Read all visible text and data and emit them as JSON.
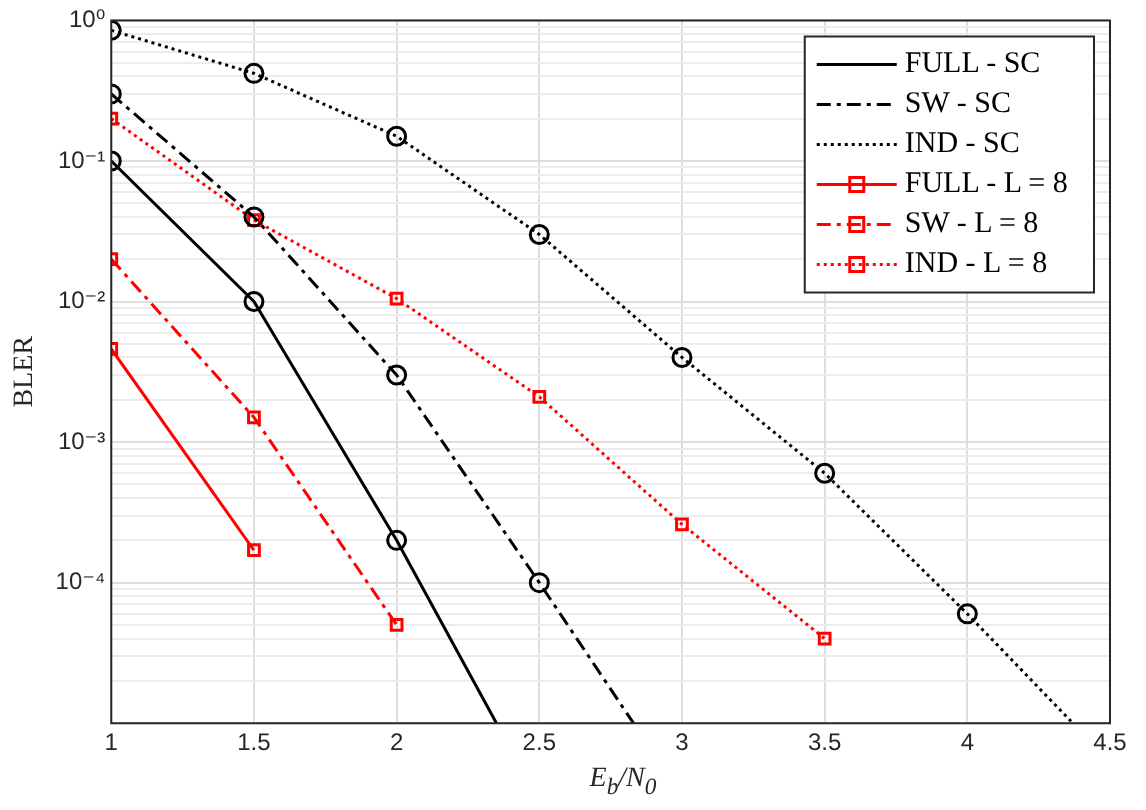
{
  "chart_data": {
    "type": "line",
    "xlabel": "E$_{b}$/N$_{0}$",
    "ylabel": "BLER",
    "xlim": [
      1,
      4.5
    ],
    "xticks": [
      1,
      1.5,
      2,
      2.5,
      3,
      3.5,
      4,
      4.5
    ],
    "ylim": [
      1e-05,
      1
    ],
    "log": "y",
    "yticks": [
      {
        "value": 1e-05,
        "label": null
      },
      {
        "value": 2e-05,
        "label": null
      },
      {
        "value": 3e-05,
        "label": null
      },
      {
        "value": 4e-05,
        "label": null
      },
      {
        "value": 5e-05,
        "label": null
      },
      {
        "value": 6e-05,
        "label": null
      },
      {
        "value": 7e-05,
        "label": null
      },
      {
        "value": 8e-05,
        "label": null
      },
      {
        "value": 9e-05,
        "label": null
      },
      {
        "value": 0.0001,
        "label": "10⁻⁴"
      },
      {
        "value": 0.0002,
        "label": null
      },
      {
        "value": 0.0003,
        "label": null
      },
      {
        "value": 0.0004,
        "label": null
      },
      {
        "value": 0.0005,
        "label": null
      },
      {
        "value": 0.0006,
        "label": null
      },
      {
        "value": 0.0007,
        "label": null
      },
      {
        "value": 0.0008,
        "label": null
      },
      {
        "value": 0.0009,
        "label": null
      },
      {
        "value": 0.001,
        "label": "10⁻³"
      },
      {
        "value": 0.002,
        "label": null
      },
      {
        "value": 0.003,
        "label": null
      },
      {
        "value": 0.004,
        "label": null
      },
      {
        "value": 0.005,
        "label": null
      },
      {
        "value": 0.006,
        "label": null
      },
      {
        "value": 0.007,
        "label": null
      },
      {
        "value": 0.008,
        "label": null
      },
      {
        "value": 0.009,
        "label": null
      },
      {
        "value": 0.01,
        "label": "10⁻²"
      },
      {
        "value": 0.02,
        "label": null
      },
      {
        "value": 0.03,
        "label": null
      },
      {
        "value": 0.04,
        "label": null
      },
      {
        "value": 0.05,
        "label": null
      },
      {
        "value": 0.06,
        "label": null
      },
      {
        "value": 0.07,
        "label": null
      },
      {
        "value": 0.08,
        "label": null
      },
      {
        "value": 0.09,
        "label": null
      },
      {
        "value": 0.1,
        "label": "10⁻¹"
      },
      {
        "value": 0.2,
        "label": null
      },
      {
        "value": 0.3,
        "label": null
      },
      {
        "value": 0.4,
        "label": null
      },
      {
        "value": 0.5,
        "label": null
      },
      {
        "value": 0.6,
        "label": null
      },
      {
        "value": 0.7,
        "label": null
      },
      {
        "value": 0.8,
        "label": null
      },
      {
        "value": 0.9,
        "label": null
      },
      {
        "value": 1,
        "label": "10⁰"
      }
    ],
    "grid": true,
    "legend": "top right",
    "series": [
      {
        "name": "FULL - SC",
        "color": "#000000",
        "line_style": "solid",
        "marker": "circle",
        "x": [
          1,
          1.5,
          2,
          2.35
        ],
        "values": [
          0.1,
          0.01,
          0.0002,
          1e-05
        ]
      },
      {
        "name": "SW - SC",
        "color": "#000000",
        "line_style": "dashed",
        "marker": "circle",
        "x": [
          1,
          1.5,
          2,
          2.5,
          2.83
        ],
        "values": [
          0.3,
          0.04,
          0.003,
          0.0001,
          1e-05
        ]
      },
      {
        "name": "IND - SC",
        "color": "#000000",
        "line_style": "dotted",
        "marker": "circle",
        "x": [
          1,
          1.5,
          2,
          2.5,
          3,
          3.5,
          4,
          4.37
        ],
        "values": [
          0.85,
          0.42,
          0.15,
          0.03,
          0.004,
          0.0006,
          6e-05,
          1e-05
        ]
      },
      {
        "name": "FULL - L = 8",
        "color": "#ff0000",
        "line_style": "solid",
        "marker": "square",
        "x": [
          1,
          1.5
        ],
        "values": [
          0.0046,
          0.00017
        ]
      },
      {
        "name": "SW - L = 8",
        "color": "#ff0000",
        "line_style": "dashed",
        "marker": "square",
        "x": [
          1,
          1.5,
          2
        ],
        "values": [
          0.02,
          0.0015,
          5e-05
        ]
      },
      {
        "name": "IND - L = 8",
        "color": "#ff0000",
        "line_style": "dotted",
        "marker": "square",
        "x": [
          1,
          1.5,
          2,
          2.5,
          3,
          3.5
        ],
        "values": [
          0.2,
          0.038,
          0.0105,
          0.0021,
          0.00026,
          4e-05
        ]
      }
    ]
  }
}
